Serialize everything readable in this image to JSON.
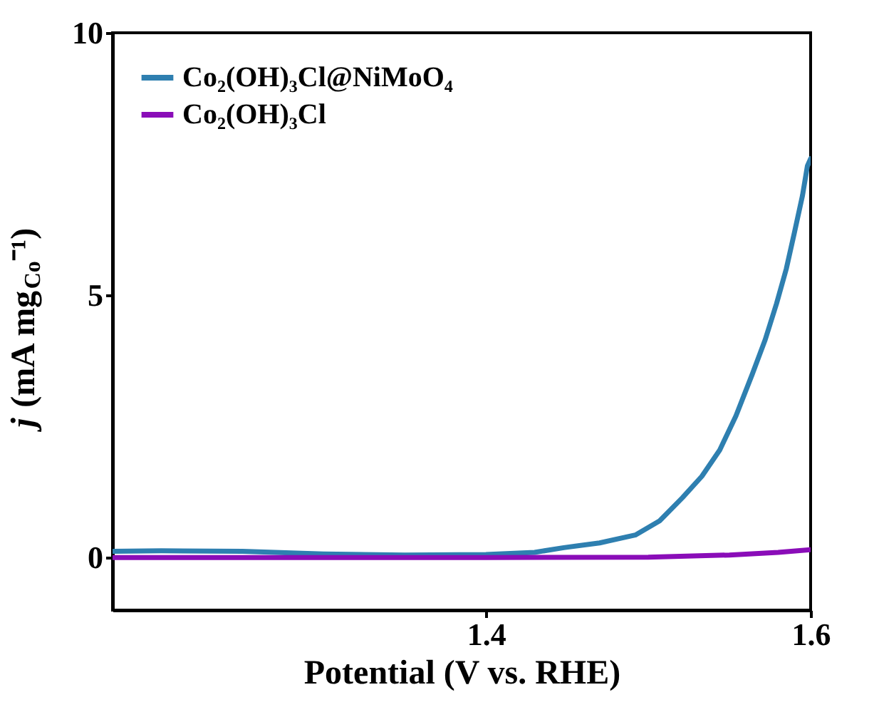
{
  "chart_data": {
    "type": "line",
    "xlabel": "Potential (V vs. RHE)",
    "ylabel": "j (mA mg$_{Co}$⁻¹)",
    "xlim": [
      1.17,
      1.6
    ],
    "ylim": [
      -1,
      10
    ],
    "xticks": [
      1.4,
      1.6
    ],
    "yticks": [
      0,
      5,
      10
    ],
    "grid": false,
    "legend": "top left",
    "marker": "none",
    "line_style": "solid",
    "series": [
      {
        "name": "Co₂(OH)₃Cl@NiMoO₄",
        "color": "#2e7fb0",
        "x": [
          1.17,
          1.2,
          1.25,
          1.3,
          1.35,
          1.4,
          1.43,
          1.448,
          1.47,
          1.492,
          1.507,
          1.521,
          1.533,
          1.544,
          1.554,
          1.564,
          1.572,
          1.579,
          1.585,
          1.59,
          1.595,
          1.598,
          1.6
        ],
        "values": [
          0.12,
          0.13,
          0.12,
          0.07,
          0.05,
          0.06,
          0.1,
          0.19,
          0.28,
          0.43,
          0.7,
          1.14,
          1.55,
          2.05,
          2.7,
          3.49,
          4.15,
          4.84,
          5.5,
          6.19,
          6.9,
          7.46,
          7.6
        ]
      },
      {
        "name": "Co₂(OH)₃Cl",
        "color": "#8a0db8",
        "x": [
          1.17,
          1.3,
          1.4,
          1.5,
          1.55,
          1.58,
          1.6
        ],
        "values": [
          0,
          0,
          0,
          0.01,
          0.05,
          0.1,
          0.15
        ]
      }
    ]
  }
}
